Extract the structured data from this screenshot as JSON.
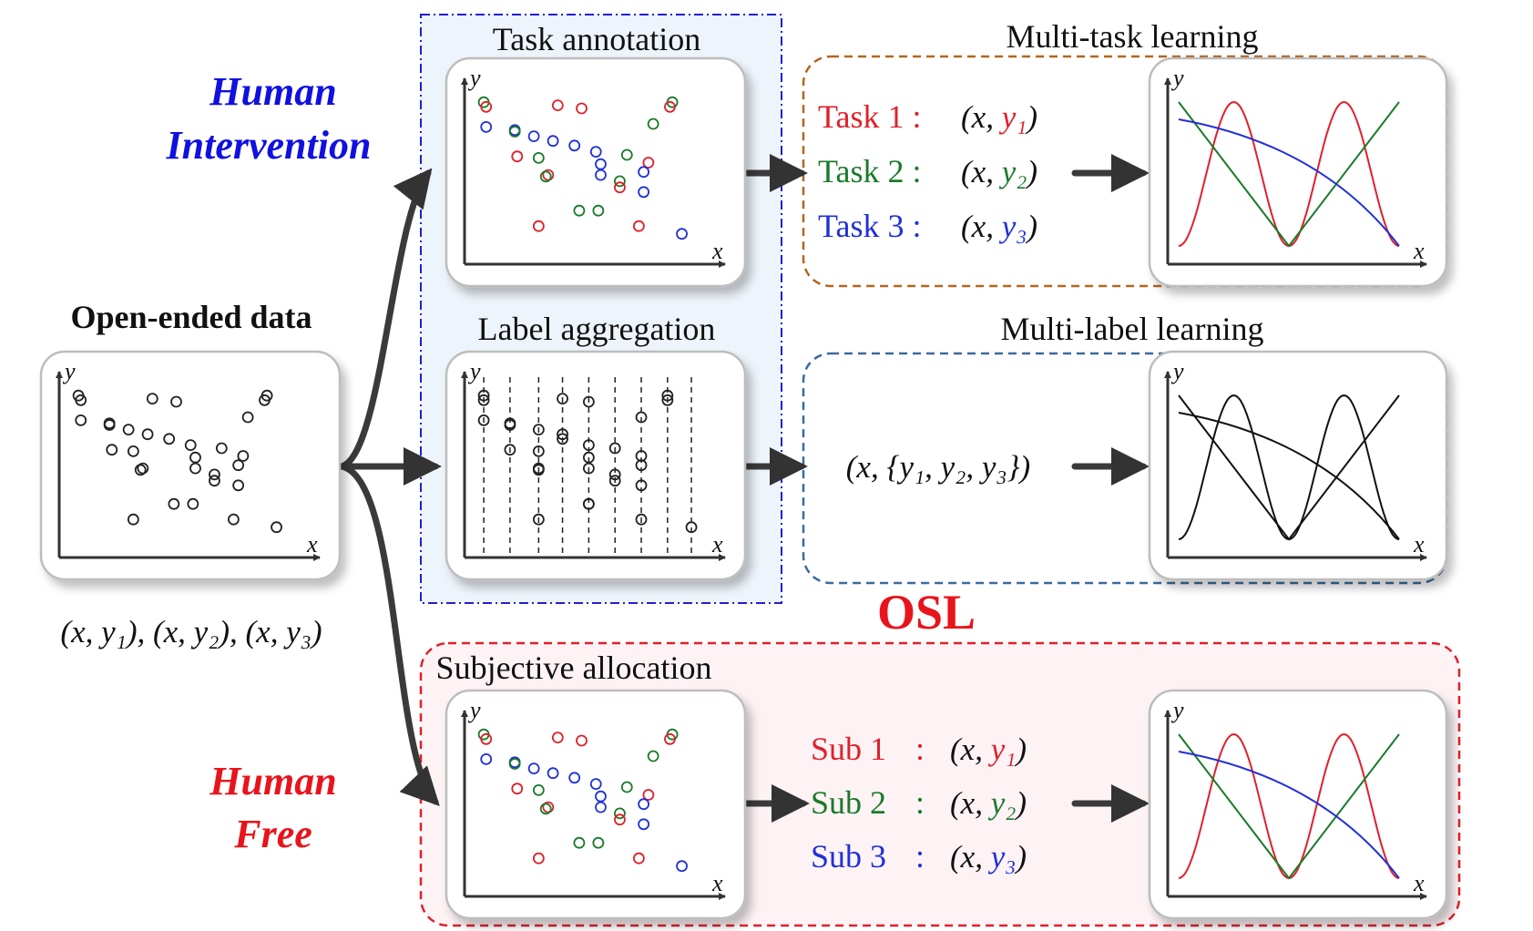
{
  "labels": {
    "human_intervention_1": "Human",
    "human_intervention_2": "Intervention",
    "human_free_1": "Human",
    "human_free_2": "Free",
    "open_ended": "Open-ended data",
    "open_ended_formula": "(x, y₁), (x, y₂), (x, y₃)",
    "task_annotation": "Task annotation",
    "label_aggregation": "Label aggregation",
    "subjective_allocation": "Subjective allocation",
    "multi_task": "Multi-task learning",
    "multi_label": "Multi-label learning",
    "osl": "OSL",
    "multi_label_formula": "(x, {y₁, y₂, y₃})",
    "axis_x": "x",
    "axis_y": "y"
  },
  "tasks": [
    {
      "name": "Task 1 :",
      "pair": "(x, ",
      "sub": "y₁",
      "close": ")"
    },
    {
      "name": "Task 2 :",
      "pair": "(x, ",
      "sub": "y₂",
      "close": ")"
    },
    {
      "name": "Task 3 :",
      "pair": "(x, ",
      "sub": "y₃",
      "close": ")"
    }
  ],
  "subs": [
    {
      "name": "Sub 1",
      "colon": ":",
      "pair": "(x, ",
      "sub": "y₁",
      "close": ")"
    },
    {
      "name": "Sub 2",
      "colon": ":",
      "pair": "(x, ",
      "sub": "y₂",
      "close": ")"
    },
    {
      "name": "Sub 3",
      "colon": ":",
      "pair": "(x, ",
      "sub": "y₃",
      "close": ")"
    }
  ],
  "colors": {
    "red": "#e0202a",
    "green": "#1a7a2a",
    "blue": "#2030d8",
    "human_intervention": "#1010e0",
    "human_free": "#e8141b",
    "osl": "#e8141b",
    "orange_border": "#b5651d",
    "blue_border": "#3a6aa0",
    "red_border": "#e0202a",
    "dotdash_border": "#2020d0"
  }
}
